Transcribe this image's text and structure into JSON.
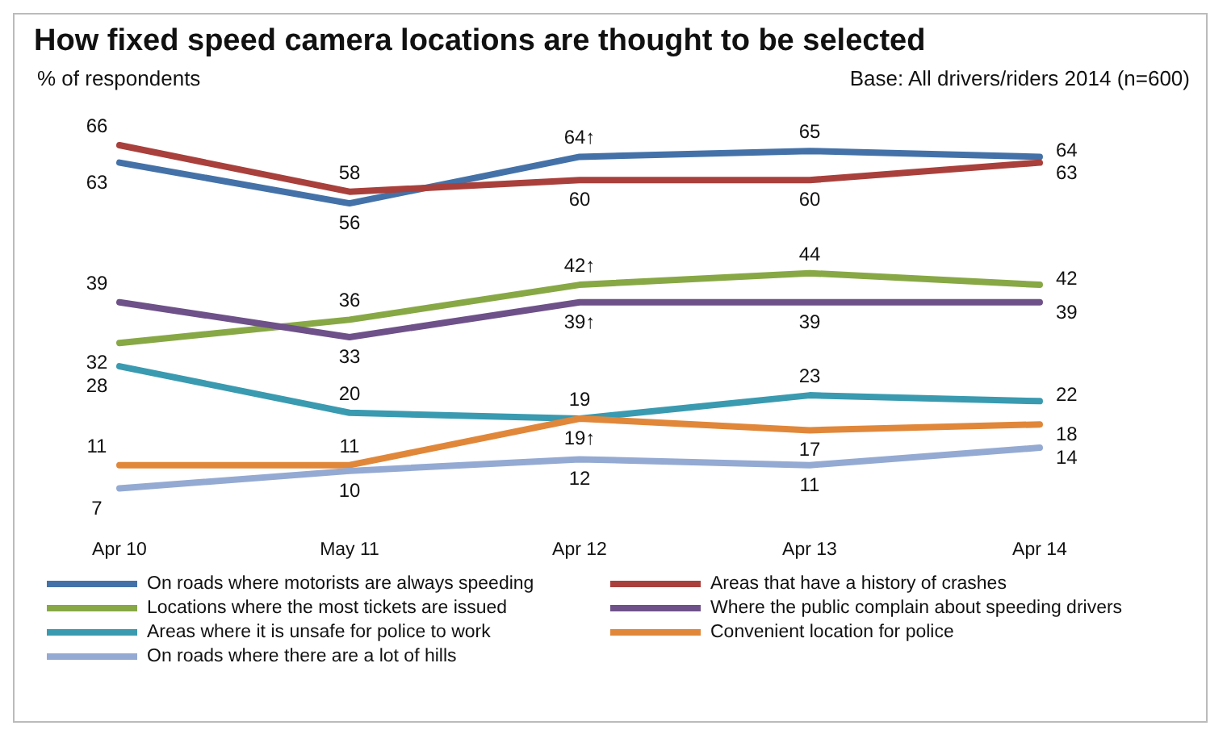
{
  "chart_data": {
    "type": "line",
    "title": "How fixed speed camera locations are thought to be selected",
    "ylabel": "% of respondents",
    "annotations": [
      "Base: All drivers/riders 2014 (n=600)"
    ],
    "categories": [
      "Apr 10",
      "May 11",
      "Apr 12",
      "Apr 13",
      "Apr 14"
    ],
    "series": [
      {
        "name": "On roads where motorists are always speeding",
        "color": "#4472a8",
        "values": [
          63,
          56,
          64,
          65,
          64
        ],
        "value_labels": [
          "63",
          "56",
          "64↑",
          "65",
          "64"
        ]
      },
      {
        "name": "Areas that have a history of crashes",
        "color": "#a9403c",
        "values": [
          66,
          58,
          60,
          60,
          63
        ],
        "value_labels": [
          "66",
          "58",
          "60",
          "60",
          "63"
        ]
      },
      {
        "name": "Locations where the most tickets are issued",
        "color": "#87a845",
        "values": [
          32,
          36,
          42,
          44,
          42
        ],
        "value_labels": [
          "32",
          "36",
          "42↑",
          "44",
          "42"
        ]
      },
      {
        "name": "Where the public complain about speeding drivers",
        "color": "#6e5189",
        "values": [
          39,
          33,
          39,
          39,
          39
        ],
        "value_labels": [
          "39",
          "33",
          "39↑",
          "39",
          "39"
        ]
      },
      {
        "name": "Areas where it is unsafe for police to work",
        "color": "#3a9ab0",
        "values": [
          28,
          20,
          19,
          23,
          22
        ],
        "value_labels": [
          "28",
          "20",
          "19",
          "23",
          "22"
        ]
      },
      {
        "name": "Convenient location for police",
        "color": "#e0873a",
        "values": [
          11,
          11,
          19,
          17,
          18
        ],
        "value_labels": [
          "11",
          "11",
          "19↑",
          "17",
          "18"
        ]
      },
      {
        "name": "On roads where there are a lot of hills",
        "color": "#94aad2",
        "values": [
          7,
          10,
          12,
          11,
          14
        ],
        "value_labels": [
          "7",
          "10",
          "12",
          "11",
          "14"
        ]
      }
    ],
    "legend": "bottom",
    "marker": "none",
    "line_style": "solid",
    "data_labels": true
  }
}
